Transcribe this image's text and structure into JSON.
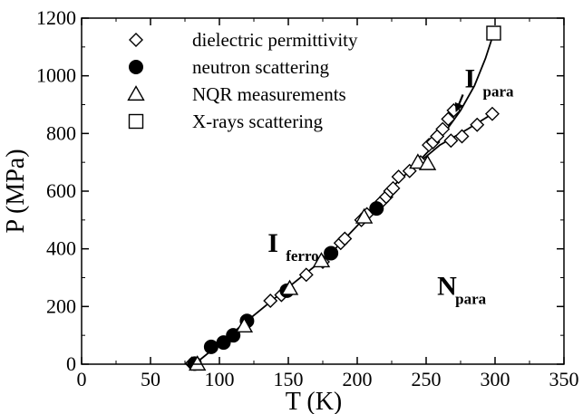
{
  "chart_data": {
    "type": "scatter",
    "xlabel": "T (K)",
    "ylabel": "P (MPa)",
    "xlim": [
      0,
      350
    ],
    "ylim": [
      0,
      1200
    ],
    "xticks": [
      "0",
      "50",
      "100",
      "150",
      "200",
      "250",
      "300",
      "350"
    ],
    "yticks": [
      "0",
      "200",
      "400",
      "600",
      "800",
      "1000",
      "1200"
    ],
    "legend_position": "top-left",
    "series": [
      {
        "name": "dielectric permittivity",
        "marker": "diamond-open",
        "points": [
          [
            80,
            2
          ],
          [
            137,
            220
          ],
          [
            145,
            240
          ],
          [
            163,
            310
          ],
          [
            175,
            355
          ],
          [
            188,
            420
          ],
          [
            191,
            435
          ],
          [
            203,
            500
          ],
          [
            207,
            520
          ],
          [
            218,
            565
          ],
          [
            221,
            580
          ],
          [
            224,
            600
          ],
          [
            226,
            610
          ],
          [
            230,
            650
          ],
          [
            238,
            670
          ],
          [
            246,
            700
          ],
          [
            252,
            760
          ],
          [
            255,
            770
          ],
          [
            258,
            790
          ],
          [
            262,
            815
          ],
          [
            266,
            850
          ],
          [
            270,
            880
          ],
          [
            268,
            775
          ],
          [
            276,
            790
          ],
          [
            287,
            830
          ],
          [
            298,
            868
          ]
        ]
      },
      {
        "name": "neutron scattering",
        "marker": "circle-filled",
        "points": [
          [
            82,
            2
          ],
          [
            94,
            60
          ],
          [
            103,
            75
          ],
          [
            110,
            100
          ],
          [
            120,
            150
          ],
          [
            149,
            255
          ],
          [
            181,
            385
          ],
          [
            214,
            540
          ]
        ]
      },
      {
        "name": "NQR measurements",
        "marker": "triangle-open",
        "points": [
          [
            84,
            0
          ],
          [
            118,
            132
          ],
          [
            151,
            262
          ],
          [
            174,
            358
          ],
          [
            205,
            510
          ],
          [
            244,
            700
          ],
          [
            251,
            695
          ]
        ]
      },
      {
        "name": "X-rays scattering",
        "marker": "square-open",
        "points": [
          [
            299,
            1148
          ]
        ]
      }
    ],
    "lines": [
      {
        "points": [
          [
            82,
            0
          ],
          [
            100,
            70
          ],
          [
            120,
            150
          ],
          [
            140,
            228
          ],
          [
            160,
            305
          ],
          [
            180,
            380
          ],
          [
            200,
            480
          ],
          [
            220,
            590
          ],
          [
            240,
            680
          ],
          [
            260,
            760
          ],
          [
            280,
            815
          ],
          [
            298,
            868
          ]
        ]
      },
      {
        "points": [
          [
            240,
            680
          ],
          [
            260,
            780
          ],
          [
            275,
            880
          ],
          [
            285,
            965
          ],
          [
            293,
            1060
          ],
          [
            299,
            1148
          ]
        ]
      }
    ],
    "annotations": [
      {
        "main": "I",
        "sub": "para",
        "x": 278,
        "y": 960,
        "arrow_to": [
          270,
          870
        ]
      },
      {
        "main": "I",
        "sub": "ferro",
        "x": 135,
        "y": 390
      },
      {
        "main": "N",
        "sub": "para",
        "x": 258,
        "y": 240
      }
    ],
    "colors": {
      "axis": "#000000",
      "markers": "#000000",
      "background": "#ffffff"
    }
  }
}
